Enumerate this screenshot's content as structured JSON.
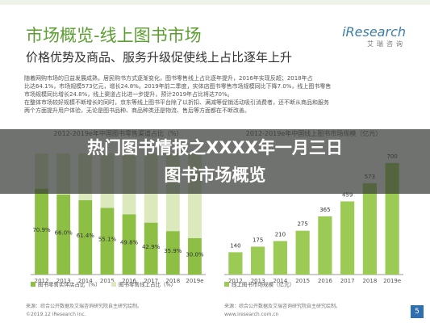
{
  "header": {
    "title": "市场概览-线上图书市场",
    "subtitle": "价格优势及商品、服务升级促使线上占比逐年上升",
    "logo": "iResearch",
    "logo_cn": "艾瑞咨询"
  },
  "body_text": [
    "随着网购市场的日益发展成熟，居民购书方式逐渐变化，图书零售线上占比逐年提升，2016年实现反超；2018年占",
    "比达64.1%，市场规模573亿元，增长24.8%。2019年前二季度，实体店图书零售市场规模同比下降7.0%，线上图书零售",
    "市场规模同比增长24.8%，线上渠道占比进一步提升，预计2019年占比将达70%。",
    "在整体市场较好规模不断增长的同时，京东等线上图书平台除了以折扣、满减等促销活动吸引消费者，还不断从商品和服务",
    "两个方面提升用户体验，无论是图书品种、商品种类还是物流、售后等方面都在不断改善。"
  ],
  "banner": [
    "热门图书情报之XXXX年一月三日",
    "图书市场概览"
  ],
  "chart_data": [
    {
      "type": "stacked_bar",
      "title": "2012-2019e年中国图书零售渠道占比（%）",
      "categories": [
        "2012",
        "2013",
        "2014",
        "2015",
        "2016",
        "2017",
        "2018",
        "2019e"
      ],
      "series": [
        {
          "name": "图书零售实体店占比（%）",
          "color": "#8dbf45",
          "values": [
            70.9,
            66.0,
            61.4,
            55.1,
            49.8,
            42.9,
            35.9,
            30.0
          ],
          "value_labels": [
            "70.9%",
            "66.0%",
            "61.4%",
            "55.1%",
            "49.8%",
            "42.9%",
            "35.9%",
            "30.0%"
          ]
        },
        {
          "name": "图书零售线上占比（%）",
          "color": "#dbe9bd",
          "values": [
            29.1,
            34.0,
            38.6,
            44.9,
            50.2,
            57.1,
            64.1,
            70.0
          ]
        }
      ],
      "ylim": [
        0,
        100
      ]
    },
    {
      "type": "bar",
      "title": "2012-2019e年中国线上图书市场规模（亿元）",
      "categories": [
        "2012",
        "2013",
        "2014",
        "2015",
        "2016",
        "2017",
        "2018",
        "2019e"
      ],
      "series": [
        {
          "name": "线上图书市场规模（亿元）",
          "color": "#9ccb55",
          "values": [
            140,
            175,
            210,
            275,
            365,
            459,
            573,
            700
          ]
        }
      ],
      "ylim": [
        0,
        760
      ]
    }
  ],
  "footer": {
    "source_left": "来源：综合公开数据及艾瑞咨询研究院自主研究绘制。",
    "copyright": "©2019.12 iResearch Inc.",
    "source_right": "来源：综合公开数据及艾瑞咨询研究院自主研究绘制。",
    "site": "www.iresearch.com.cn",
    "page": "5"
  }
}
